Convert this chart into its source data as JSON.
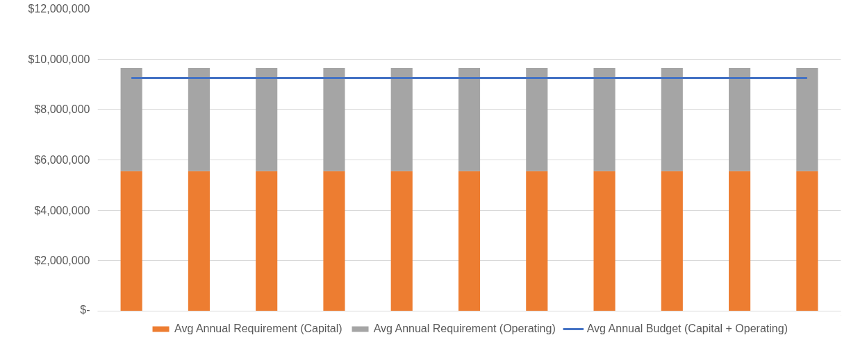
{
  "chart_data": {
    "type": "bar",
    "stacked": true,
    "categories": [
      null,
      null,
      null,
      null,
      null,
      null,
      null,
      null,
      null,
      null,
      null
    ],
    "series": [
      {
        "name": "Avg Annual Requirement (Capital)",
        "color": "#ed7d31",
        "values": [
          5550000,
          5550000,
          5550000,
          5550000,
          5550000,
          5550000,
          5550000,
          5550000,
          5550000,
          5550000,
          5550000
        ]
      },
      {
        "name": "Avg Annual Requirement (Operating)",
        "color": "#a5a5a5",
        "values": [
          4100000,
          4100000,
          4100000,
          4100000,
          4100000,
          4100000,
          4100000,
          4100000,
          4100000,
          4100000,
          4100000
        ]
      },
      {
        "name": "Avg Annual Budget (Capital + Operating)",
        "color": "#4472c4",
        "type": "line",
        "values": [
          9250000,
          9250000,
          9250000,
          9250000,
          9250000,
          9250000,
          9250000,
          9250000,
          9250000,
          9250000,
          9250000
        ]
      }
    ],
    "ylim": [
      0,
      12000000
    ],
    "yticks": [
      {
        "value": 0,
        "label": "$-"
      },
      {
        "value": 2000000,
        "label": "$2,000,000"
      },
      {
        "value": 4000000,
        "label": "$4,000,000"
      },
      {
        "value": 6000000,
        "label": "$6,000,000"
      },
      {
        "value": 8000000,
        "label": "$8,000,000"
      },
      {
        "value": 10000000,
        "label": "$10,000,000"
      },
      {
        "value": 12000000,
        "label": "$12,000,000"
      }
    ],
    "grid": "y",
    "legend": "bottom"
  }
}
